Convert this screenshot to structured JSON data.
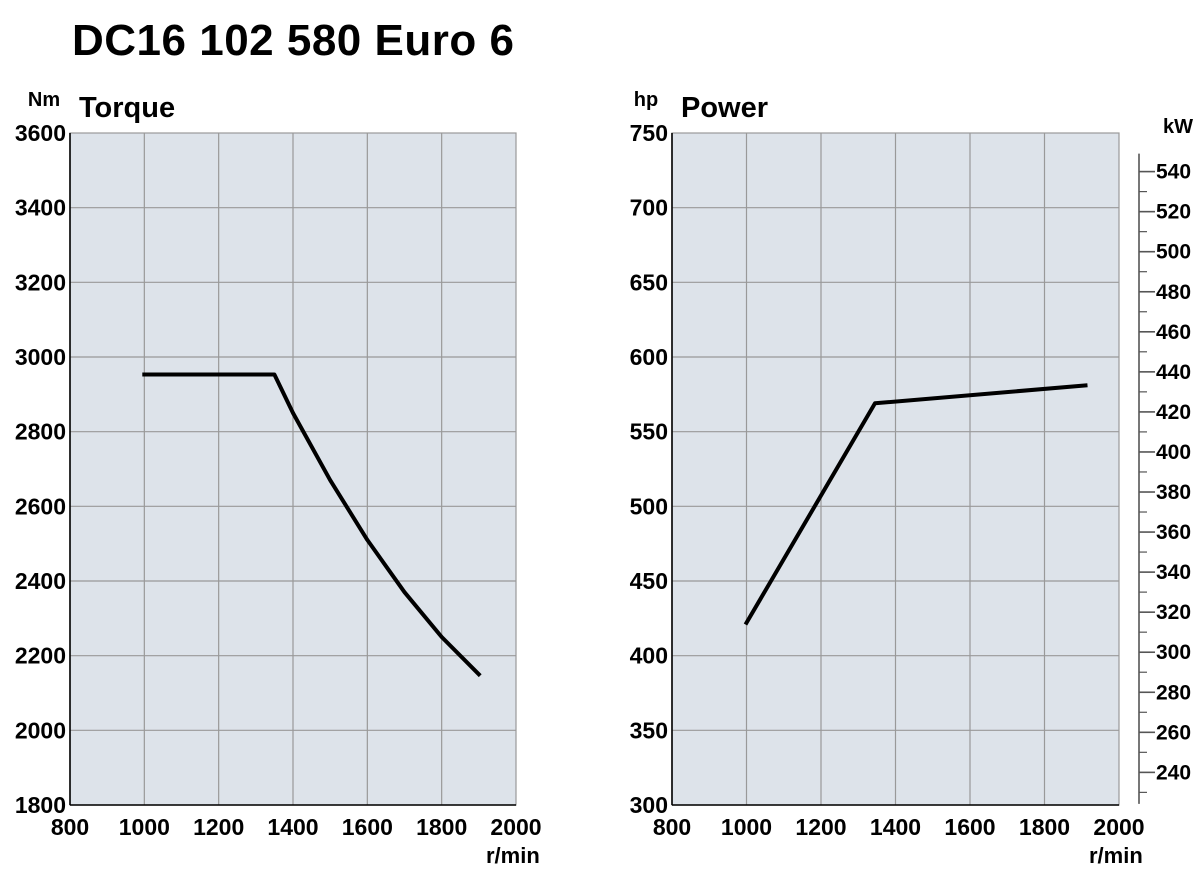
{
  "page_title": "DC16 102 580 Euro 6",
  "chart_data": [
    {
      "type": "line",
      "title": "Torque",
      "ylabel": "Nm",
      "xlabel": "r/min",
      "xlim": [
        800,
        2000
      ],
      "ylim": [
        1800,
        3600
      ],
      "xticks": [
        800,
        1000,
        1200,
        1400,
        1600,
        1800,
        2000
      ],
      "yticks": [
        1800,
        2000,
        2200,
        2400,
        2600,
        2800,
        3000,
        3200,
        3400,
        3600
      ],
      "grid": true,
      "background": "#dde3ea",
      "series": [
        {
          "x": [
            1000,
            1350,
            1400,
            1500,
            1600,
            1700,
            1800,
            1900
          ],
          "y": [
            2953,
            2953,
            2850,
            2670,
            2510,
            2370,
            2250,
            2150
          ],
          "color": "#000000"
        }
      ]
    },
    {
      "type": "line",
      "title": "Power",
      "ylabel": "hp",
      "y2label": "kW",
      "xlabel": "r/min",
      "xlim": [
        800,
        2000
      ],
      "ylim": [
        300,
        750
      ],
      "xticks": [
        800,
        1000,
        1200,
        1400,
        1600,
        1800,
        2000
      ],
      "yticks": [
        300,
        350,
        400,
        450,
        500,
        550,
        600,
        650,
        700,
        750
      ],
      "y2ticks": [
        240,
        260,
        280,
        300,
        320,
        340,
        360,
        380,
        400,
        420,
        440,
        460,
        480,
        500,
        520,
        540
      ],
      "grid": true,
      "background": "#dde3ea",
      "series": [
        {
          "x": [
            1000,
            1345,
            1910
          ],
          "y": [
            422,
            569,
            581
          ],
          "color": "#000000"
        }
      ]
    }
  ]
}
